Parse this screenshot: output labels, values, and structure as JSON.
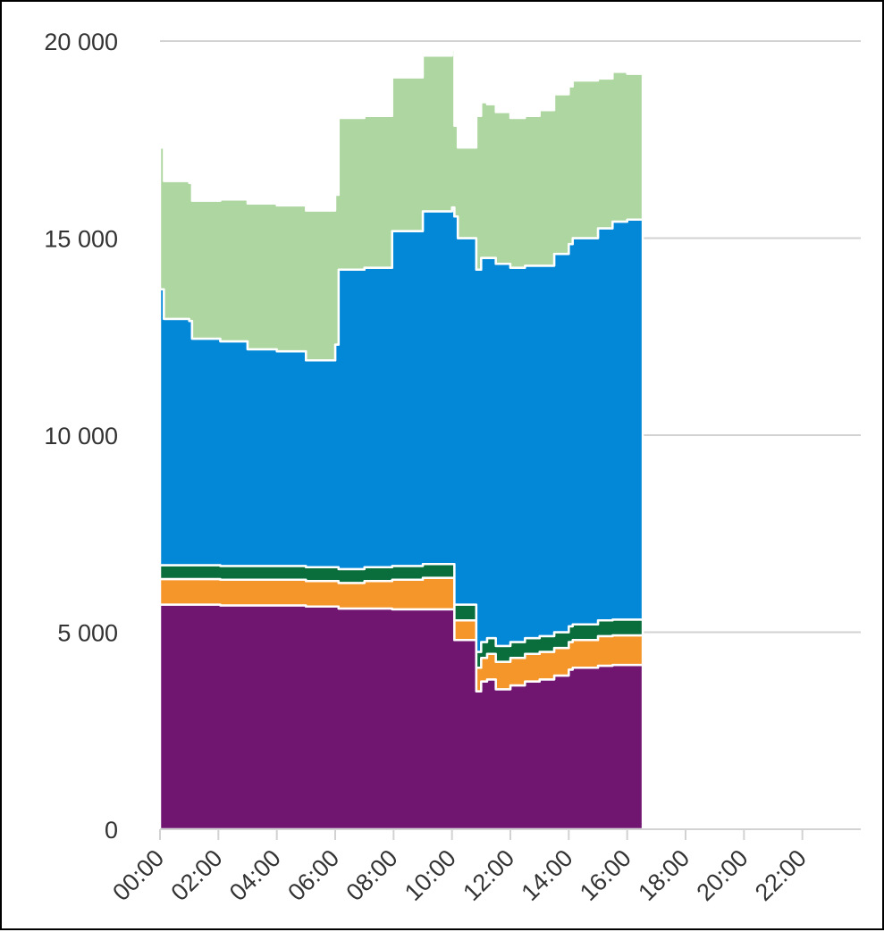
{
  "chart_data": {
    "type": "area",
    "stacked": true,
    "title": "",
    "xlabel": "",
    "ylabel": "",
    "ylim": [
      0,
      20000
    ],
    "xlim": [
      "00:00",
      "24:00"
    ],
    "y_ticks": [
      {
        "value": 0,
        "label": "0"
      },
      {
        "value": 5000,
        "label": "5 000"
      },
      {
        "value": 10000,
        "label": "10 000"
      },
      {
        "value": 15000,
        "label": "15 000"
      },
      {
        "value": 20000,
        "label": "20 000"
      }
    ],
    "x_ticks": [
      {
        "hour": 0,
        "label": "00:00"
      },
      {
        "hour": 2,
        "label": "02:00"
      },
      {
        "hour": 4,
        "label": "04:00"
      },
      {
        "hour": 6,
        "label": "06:00"
      },
      {
        "hour": 8,
        "label": "08:00"
      },
      {
        "hour": 10,
        "label": "10:00"
      },
      {
        "hour": 12,
        "label": "12:00"
      },
      {
        "hour": 14,
        "label": "14:00"
      },
      {
        "hour": 16,
        "label": "16:00"
      },
      {
        "hour": 18,
        "label": "18:00"
      },
      {
        "hour": 20,
        "label": "20:00"
      },
      {
        "hour": 22,
        "label": "22:00"
      }
    ],
    "grid": true,
    "legend": "none",
    "x": [
      "00:00",
      "00:08",
      "01:00",
      "01:06",
      "02:04",
      "03:00",
      "04:00",
      "05:00",
      "06:00",
      "06:07",
      "07:00",
      "07:57",
      "08:00",
      "09:00",
      "10:00",
      "10:05",
      "10:12",
      "10:50",
      "11:00",
      "11:12",
      "11:30",
      "12:00",
      "12:30",
      "13:00",
      "13:30",
      "14:00",
      "14:08",
      "15:00",
      "15:30",
      "16:00",
      "16:32"
    ],
    "series": [
      {
        "color": "#701570",
        "values": [
          5700,
          5700,
          5700,
          5700,
          5680,
          5680,
          5680,
          5650,
          5650,
          5600,
          5600,
          5580,
          5580,
          5580,
          5580,
          4800,
          4800,
          3500,
          3750,
          3800,
          3550,
          3650,
          3750,
          3800,
          3900,
          4050,
          4100,
          4150,
          4170,
          4170,
          4170
        ]
      },
      {
        "color": "#f5962a",
        "values": [
          650,
          650,
          650,
          650,
          650,
          650,
          650,
          650,
          650,
          650,
          700,
          750,
          750,
          800,
          800,
          500,
          500,
          600,
          600,
          650,
          700,
          700,
          700,
          700,
          700,
          700,
          700,
          750,
          750,
          750,
          750
        ]
      },
      {
        "color": "#0a6e3c",
        "values": [
          350,
          350,
          350,
          350,
          350,
          350,
          350,
          350,
          350,
          350,
          350,
          350,
          350,
          350,
          350,
          400,
          400,
          400,
          400,
          400,
          400,
          400,
          400,
          400,
          400,
          400,
          400,
          400,
          400,
          400,
          400
        ]
      },
      {
        "color": "#0288d6",
        "values": [
          7000,
          6250,
          6200,
          5750,
          5700,
          5500,
          5450,
          5250,
          5650,
          7600,
          7600,
          8500,
          8500,
          8950,
          9050,
          9850,
          9300,
          9700,
          9750,
          9650,
          9700,
          9500,
          9450,
          9400,
          9600,
          9700,
          9800,
          9950,
          10100,
          10150,
          10150
        ]
      },
      {
        "color": "#aed6a0",
        "values": [
          3600,
          3500,
          3500,
          3500,
          3600,
          3700,
          3700,
          3800,
          3800,
          3850,
          3850,
          3900,
          3900,
          3950,
          4000,
          2300,
          2300,
          3900,
          3950,
          3900,
          3850,
          3800,
          3800,
          3950,
          4050,
          4000,
          4000,
          3800,
          3800,
          3700,
          3700
        ]
      }
    ]
  }
}
